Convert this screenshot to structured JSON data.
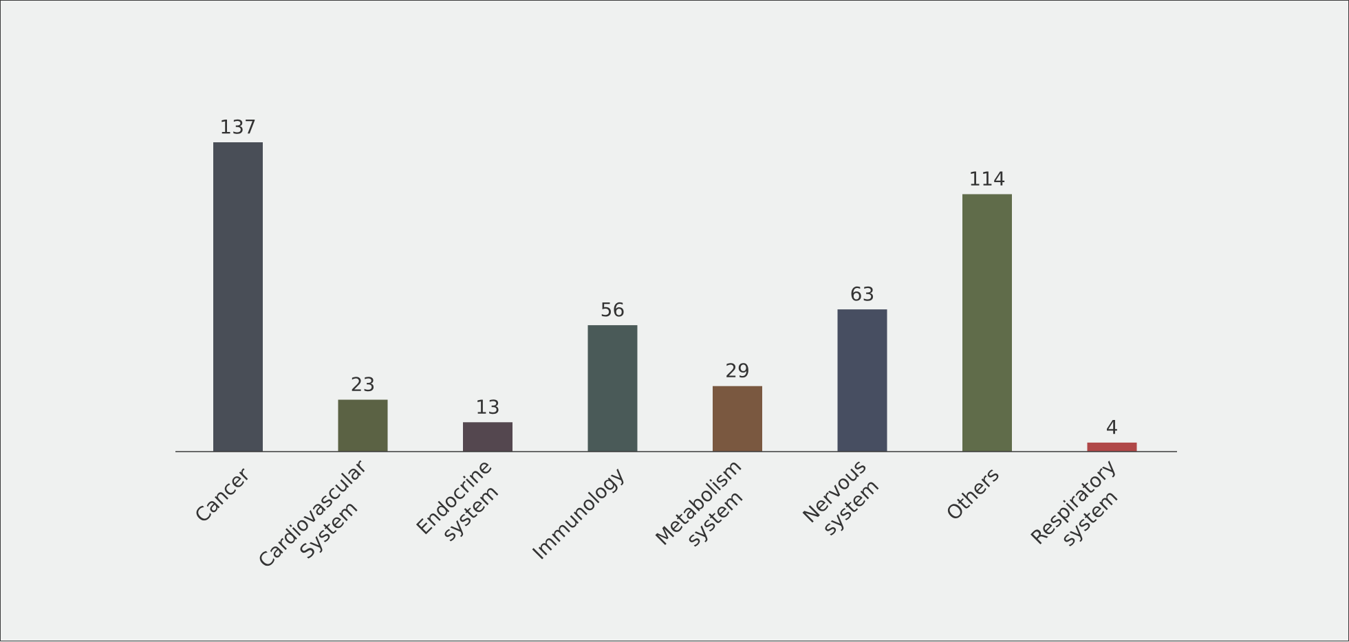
{
  "chart_data": {
    "type": "bar",
    "categories": [
      [
        "Cancer"
      ],
      [
        "Cardiovascular",
        "System"
      ],
      [
        "Endocrine",
        "system"
      ],
      [
        "Immunology"
      ],
      [
        "Metabolism",
        "system"
      ],
      [
        "Nervous",
        "system"
      ],
      [
        "Others"
      ],
      [
        "Respiratory",
        "system"
      ]
    ],
    "values": [
      137,
      23,
      13,
      56,
      29,
      63,
      114,
      4
    ],
    "colors": [
      "#494e57",
      "#5b6244",
      "#54474f",
      "#4a5a58",
      "#7a5840",
      "#474e61",
      "#606c4a",
      "#b04848"
    ],
    "ylim": [
      0,
      137
    ],
    "grid": false,
    "legend": "none",
    "data_labels": true,
    "tick_rotation": -45
  }
}
